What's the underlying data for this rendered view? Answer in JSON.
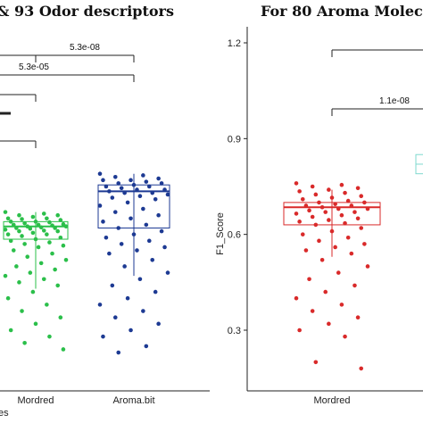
{
  "chart_data": [
    {
      "type": "box",
      "title": "& 93 Odor descriptors",
      "categories": [
        "Mordred",
        "Aroma.bit"
      ],
      "colors": {
        "Mordred": "#2bbf4a",
        "Aroma.bit": "#1d3a93"
      },
      "ylim": [
        0.15,
        1.22
      ],
      "boxes": [
        {
          "name": "Mordred",
          "q1": 0.585,
          "median": 0.625,
          "q3": 0.64,
          "whisker_low": 0.43,
          "whisker_high": 0.67
        },
        {
          "name": "Aroma.bit",
          "q1": 0.62,
          "median": 0.735,
          "q3": 0.755,
          "whisker_low": 0.47,
          "whisker_high": 0.79
        }
      ],
      "points": {
        "Mordred": [
          0.67,
          0.665,
          0.66,
          0.66,
          0.655,
          0.65,
          0.65,
          0.648,
          0.645,
          0.64,
          0.64,
          0.638,
          0.635,
          0.632,
          0.63,
          0.63,
          0.628,
          0.625,
          0.625,
          0.622,
          0.62,
          0.62,
          0.618,
          0.615,
          0.612,
          0.61,
          0.61,
          0.605,
          0.6,
          0.6,
          0.595,
          0.59,
          0.585,
          0.58,
          0.575,
          0.57,
          0.565,
          0.56,
          0.55,
          0.54,
          0.53,
          0.52,
          0.51,
          0.5,
          0.49,
          0.48,
          0.47,
          0.46,
          0.45,
          0.44,
          0.42,
          0.4,
          0.38,
          0.36,
          0.34,
          0.32,
          0.3,
          0.28,
          0.26,
          0.24
        ],
        "Aroma.bit": [
          0.79,
          0.785,
          0.78,
          0.775,
          0.77,
          0.77,
          0.765,
          0.76,
          0.76,
          0.755,
          0.75,
          0.75,
          0.745,
          0.74,
          0.74,
          0.735,
          0.73,
          0.73,
          0.725,
          0.72,
          0.715,
          0.71,
          0.7,
          0.69,
          0.68,
          0.67,
          0.66,
          0.65,
          0.64,
          0.63,
          0.62,
          0.61,
          0.6,
          0.59,
          0.58,
          0.57,
          0.56,
          0.55,
          0.54,
          0.52,
          0.5,
          0.48,
          0.46,
          0.44,
          0.42,
          0.4,
          0.38,
          0.36,
          0.34,
          0.32,
          0.3,
          0.28,
          0.25,
          0.23
        ]
      },
      "comparisons": [
        {
          "label": "5.3e-08"
        },
        {
          "label": "5.3e-05"
        },
        {
          "label": ""
        },
        {
          "label": ""
        }
      ],
      "xaxis_partial_label": "es"
    },
    {
      "type": "box",
      "title": "For 80 Aroma Molec",
      "ylabel": "F1_Score",
      "yticks": [
        "0.3",
        "0.6",
        "0.9",
        "1.2"
      ],
      "categories": [
        "Mordred"
      ],
      "colors": {
        "Mordred": "#d92a2a",
        "partial": "#7fd9cf"
      },
      "ylim": [
        0.15,
        1.22
      ],
      "boxes": [
        {
          "name": "Mordred",
          "q1": 0.63,
          "median": 0.685,
          "q3": 0.7,
          "whisker_low": 0.53,
          "whisker_high": 0.74
        }
      ],
      "points": {
        "Mordred": [
          0.76,
          0.755,
          0.75,
          0.745,
          0.74,
          0.735,
          0.73,
          0.725,
          0.72,
          0.715,
          0.71,
          0.705,
          0.7,
          0.7,
          0.695,
          0.69,
          0.69,
          0.685,
          0.68,
          0.68,
          0.675,
          0.67,
          0.67,
          0.665,
          0.66,
          0.655,
          0.65,
          0.645,
          0.64,
          0.635,
          0.63,
          0.62,
          0.61,
          0.6,
          0.59,
          0.58,
          0.57,
          0.56,
          0.55,
          0.54,
          0.52,
          0.5,
          0.48,
          0.46,
          0.44,
          0.42,
          0.4,
          0.38,
          0.36,
          0.34,
          0.32,
          0.3,
          0.28,
          0.2,
          0.18
        ]
      },
      "comparisons": [
        {
          "label": "1.1e-08"
        }
      ]
    }
  ]
}
